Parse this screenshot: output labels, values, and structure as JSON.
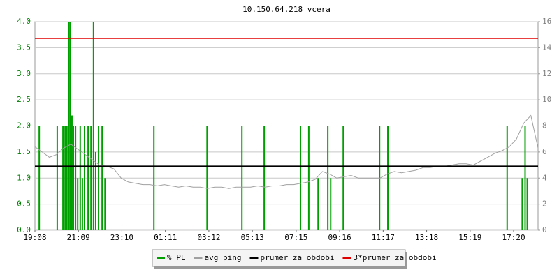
{
  "chart_data": {
    "type": "line",
    "title": "10.150.64.218 vcera",
    "xlim": [
      0,
      1400
    ],
    "xticks": [
      {
        "value": 0,
        "label": "19:08"
      },
      {
        "value": 121,
        "label": "21:09"
      },
      {
        "value": 242,
        "label": "23:10"
      },
      {
        "value": 363,
        "label": "01:11"
      },
      {
        "value": 484,
        "label": "03:12"
      },
      {
        "value": 605,
        "label": "05:13"
      },
      {
        "value": 727,
        "label": "07:15"
      },
      {
        "value": 848,
        "label": "09:16"
      },
      {
        "value": 969,
        "label": "11:17"
      },
      {
        "value": 1090,
        "label": "13:18"
      },
      {
        "value": 1211,
        "label": "15:19"
      },
      {
        "value": 1332,
        "label": "17:20"
      }
    ],
    "ylim": [
      0,
      4
    ],
    "yticks": [
      {
        "value": 0,
        "label": "0.0"
      },
      {
        "value": 0.5,
        "label": "0.5"
      },
      {
        "value": 1,
        "label": "1.0"
      },
      {
        "value": 1.5,
        "label": "1.5"
      },
      {
        "value": 2,
        "label": "2.0"
      },
      {
        "value": 2.5,
        "label": "2.5"
      },
      {
        "value": 3,
        "label": "3.0"
      },
      {
        "value": 3.5,
        "label": "3.5"
      },
      {
        "value": 4,
        "label": "4.0"
      }
    ],
    "y2lim": [
      0,
      16
    ],
    "y2ticks": [
      0,
      2,
      4,
      6,
      8,
      10,
      12,
      14,
      16
    ],
    "grid": true,
    "series": [
      {
        "name": "% PL",
        "color": "#00a000",
        "style": "spikes",
        "x": [
          12,
          62,
          78,
          84,
          89,
          95,
          99,
          103,
          107,
          113,
          119,
          126,
          132,
          138,
          148,
          156,
          163,
          169,
          177,
          187,
          195,
          331,
          479,
          576,
          638,
          739,
          762,
          788,
          815,
          823,
          858,
          959,
          982,
          1314,
          1356,
          1364,
          1370
        ],
        "values": [
          2.0,
          2.0,
          2.0,
          2.0,
          2.0,
          4.0,
          4.0,
          2.2,
          2.0,
          2.0,
          1.0,
          2.0,
          1.0,
          2.0,
          2.0,
          2.0,
          4.0,
          1.5,
          2.0,
          2.0,
          1.0,
          2.0,
          2.0,
          2.0,
          2.0,
          2.0,
          2.0,
          1.0,
          2.0,
          1.0,
          2.0,
          2.0,
          2.0,
          2.0,
          1.0,
          2.0,
          1.0
        ]
      },
      {
        "name": "avg ping",
        "color": "#a0a0a0",
        "style": "line",
        "axis": "y2",
        "x": [
          0,
          20,
          40,
          60,
          80,
          100,
          120,
          140,
          160,
          180,
          200,
          220,
          240,
          260,
          280,
          300,
          320,
          340,
          360,
          380,
          400,
          420,
          440,
          460,
          480,
          500,
          520,
          540,
          560,
          580,
          600,
          620,
          640,
          660,
          680,
          700,
          720,
          740,
          760,
          780,
          800,
          820,
          840,
          860,
          880,
          900,
          920,
          940,
          960,
          980,
          1000,
          1020,
          1040,
          1060,
          1080,
          1100,
          1120,
          1140,
          1160,
          1180,
          1200,
          1220,
          1240,
          1260,
          1280,
          1300,
          1320,
          1340,
          1360,
          1380,
          1400
        ],
        "values": [
          6.4,
          6.0,
          5.6,
          5.8,
          6.3,
          6.6,
          6.2,
          5.8,
          5.4,
          5.0,
          4.9,
          4.7,
          4.0,
          3.7,
          3.6,
          3.5,
          3.5,
          3.4,
          3.5,
          3.4,
          3.3,
          3.4,
          3.3,
          3.3,
          3.2,
          3.3,
          3.3,
          3.2,
          3.3,
          3.3,
          3.3,
          3.4,
          3.3,
          3.4,
          3.4,
          3.5,
          3.5,
          3.6,
          3.7,
          3.9,
          4.5,
          4.3,
          4.0,
          4.1,
          4.2,
          4.0,
          4.0,
          4.0,
          4.0,
          4.3,
          4.5,
          4.4,
          4.5,
          4.6,
          4.8,
          4.8,
          4.9,
          4.9,
          5.0,
          5.1,
          5.1,
          5.0,
          5.3,
          5.6,
          5.9,
          6.1,
          6.4,
          7.0,
          8.2,
          8.8,
          6.3
        ]
      },
      {
        "name": "prumer za obdobi",
        "color": "#000000",
        "style": "hline",
        "axis": "y2",
        "values": [
          4.9
        ]
      },
      {
        "name": "3*prumer za obdobi",
        "color": "#e00000",
        "style": "hline",
        "axis": "y2",
        "values": [
          14.7
        ]
      }
    ]
  }
}
